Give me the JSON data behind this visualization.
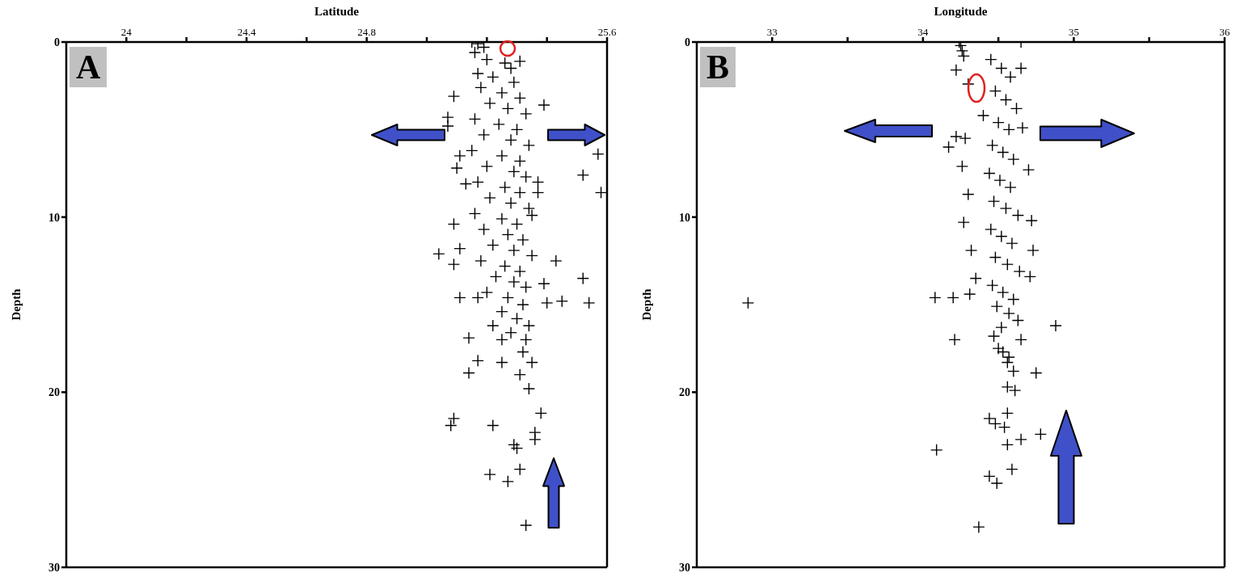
{
  "chart_data": [
    {
      "type": "scatter",
      "xlabel": "Latitude",
      "ylabel": "Depth",
      "annotations": [
        "A"
      ],
      "xlim": [
        23.8,
        25.6
      ],
      "ylim": [
        30,
        0
      ],
      "xticks": [
        24,
        {
          "value": 24.2,
          "label": null
        },
        24.4,
        {
          "value": 24.6,
          "label": null
        },
        24.8,
        {
          "value": 25.0,
          "label": null
        },
        {
          "value": 25.2,
          "label": null
        },
        {
          "value": 25.4,
          "label": null
        },
        25.6
      ],
      "yticks": [
        0,
        10,
        20,
        30
      ],
      "marker": "cross",
      "color": "#000000",
      "x": [
        25.57,
        25.52,
        25.58,
        25.39,
        25.31,
        25.37,
        25.37,
        25.43,
        25.52,
        25.35,
        25.39,
        25.09,
        25.07,
        25.07,
        25.11,
        25.1,
        25.04,
        25.09,
        25.11,
        25.13,
        25.09,
        25.11,
        25.17,
        25.4,
        25.45,
        25.54,
        25.14,
        25.17,
        25.14,
        25.22,
        25.25,
        25.25,
        25.31,
        25.34,
        25.38,
        25.09,
        25.08,
        25.22,
        25.29,
        25.3,
        25.36,
        25.36,
        25.21,
        25.27,
        25.31,
        25.33,
        25.32,
        25.35,
        25.33,
        25.15,
        25.17,
        25.19,
        25.16,
        25.2,
        25.26,
        25.28,
        25.17,
        25.22,
        25.29,
        25.18,
        25.25,
        25.31,
        25.21,
        25.27,
        25.33,
        25.16,
        25.24,
        25.3,
        25.19,
        25.28,
        25.34,
        25.15,
        25.25,
        25.31,
        25.2,
        25.29,
        25.33,
        25.17,
        25.26,
        25.31,
        25.21,
        25.28,
        25.34,
        25.16,
        25.25,
        25.3,
        25.19,
        25.27,
        25.32,
        25.22,
        25.29,
        25.35,
        25.18,
        25.26,
        25.31,
        25.23,
        25.29,
        25.33,
        25.2,
        25.27,
        25.32,
        25.25,
        25.3,
        25.34,
        25.28
      ],
      "values": [
        6.4,
        7.6,
        8.6,
        3.6,
        1.1,
        8.0,
        8.6,
        12.5,
        13.5,
        9.9,
        13.8,
        3.1,
        4.3,
        4.8,
        6.5,
        7.2,
        12.1,
        12.7,
        11.8,
        8.1,
        10.4,
        14.6,
        14.6,
        14.9,
        14.8,
        14.9,
        16.9,
        18.2,
        18.9,
        16.2,
        17.0,
        18.3,
        19.0,
        19.8,
        21.2,
        21.5,
        21.9,
        21.9,
        23.0,
        23.2,
        22.3,
        22.7,
        24.7,
        25.1,
        24.4,
        27.6,
        17.7,
        18.3,
        17.0,
        0.0,
        0.1,
        0.3,
        0.6,
        1.0,
        1.2,
        1.5,
        1.8,
        2.0,
        2.3,
        2.6,
        2.9,
        3.2,
        3.5,
        3.8,
        4.1,
        4.4,
        4.7,
        5.0,
        5.3,
        5.6,
        5.9,
        6.2,
        6.5,
        6.8,
        7.1,
        7.4,
        7.7,
        8.0,
        8.3,
        8.6,
        8.9,
        9.2,
        9.5,
        9.8,
        10.1,
        10.4,
        10.7,
        11.0,
        11.3,
        11.6,
        11.9,
        12.2,
        12.5,
        12.8,
        13.1,
        13.4,
        13.7,
        14.0,
        14.3,
        14.6,
        15.0,
        15.4,
        15.8,
        16.2,
        16.6
      ]
    },
    {
      "type": "scatter",
      "xlabel": "Longitude",
      "ylabel": "Depth",
      "annotations": [
        "B"
      ],
      "xlim": [
        32.5,
        36
      ],
      "ylim": [
        30,
        0
      ],
      "xticks": [
        33,
        {
          "value": 33.5,
          "label": null
        },
        34,
        {
          "value": 34.5,
          "label": null
        },
        35,
        {
          "value": 35.5,
          "label": null
        },
        36
      ],
      "yticks": [
        0,
        10,
        20,
        30
      ],
      "marker": "cross",
      "color": "#000000",
      "x": [
        34.08,
        34.2,
        34.31,
        34.21,
        34.88,
        34.47,
        34.65,
        34.75,
        34.6,
        34.56,
        34.61,
        34.56,
        34.44,
        34.48,
        34.54,
        34.56,
        34.65,
        34.78,
        34.09,
        34.44,
        34.49,
        34.59,
        34.37,
        34.53,
        34.57,
        32.84,
        34.65,
        34.65,
        34.17,
        34.22,
        34.66,
        34.7,
        34.72,
        34.73,
        34.71,
        34.26,
        34.25,
        34.24,
        34.27,
        34.22,
        34.45,
        34.52,
        34.58,
        34.3,
        34.48,
        34.55,
        34.62,
        34.4,
        34.5,
        34.57,
        34.28,
        34.46,
        34.53,
        34.6,
        34.26,
        34.44,
        34.51,
        34.58,
        34.3,
        34.47,
        34.55,
        34.63,
        34.27,
        34.45,
        34.52,
        34.59,
        34.32,
        34.48,
        34.56,
        34.64,
        34.35,
        34.46,
        34.53,
        34.6,
        34.49,
        34.57,
        34.63,
        34.52,
        34.5,
        34.56
      ],
      "values": [
        14.6,
        14.6,
        14.4,
        17.0,
        16.2,
        16.8,
        17.0,
        18.9,
        18.8,
        19.7,
        19.9,
        21.2,
        21.5,
        21.8,
        22.0,
        23.0,
        22.7,
        22.4,
        23.3,
        24.8,
        25.2,
        24.4,
        27.7,
        17.7,
        18.0,
        14.9,
        0.0,
        1.5,
        6.0,
        5.4,
        4.9,
        7.3,
        10.2,
        11.9,
        13.4,
        0.5,
        0.2,
        0.0,
        0.8,
        1.6,
        1.0,
        1.5,
        2.0,
        2.4,
        2.8,
        3.3,
        3.8,
        4.2,
        4.6,
        5.0,
        5.5,
        5.9,
        6.3,
        6.7,
        7.1,
        7.5,
        7.9,
        8.3,
        8.7,
        9.1,
        9.5,
        9.9,
        10.3,
        10.7,
        11.1,
        11.5,
        11.9,
        12.3,
        12.7,
        13.1,
        13.5,
        13.9,
        14.3,
        14.7,
        15.1,
        15.5,
        15.9,
        16.3,
        17.5,
        18.3
      ]
    }
  ]
}
